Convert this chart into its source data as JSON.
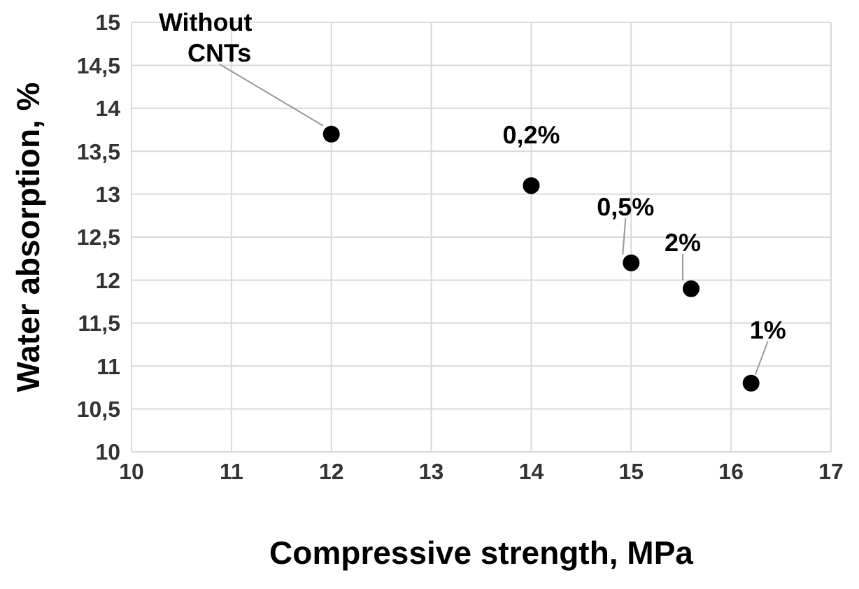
{
  "chart_data": {
    "type": "scatter",
    "xlabel": "Compressive strength, MPa",
    "ylabel": "Water absorption, %",
    "x": [
      12,
      14,
      15,
      15.6,
      16.2
    ],
    "series": [
      {
        "color": "#000000",
        "values": [
          13.7,
          13.1,
          12.2,
          11.9,
          10.8
        ]
      }
    ],
    "xlim": [
      10,
      17
    ],
    "xticks": [
      10,
      11,
      12,
      13,
      14,
      15,
      16,
      17
    ],
    "ylim": [
      10,
      15
    ],
    "yticks": [
      10,
      {
        "value": 10.5,
        "label": "10,5"
      },
      11,
      {
        "value": 11.5,
        "label": "11,5"
      },
      12,
      {
        "value": 12.5,
        "label": "12,5"
      },
      13,
      {
        "value": 13.5,
        "label": "13,5"
      },
      14,
      {
        "value": 14.5,
        "label": "14,5"
      },
      15
    ],
    "grid": true,
    "marker": "circle",
    "annotations": [
      {
        "text": "Without CNTs",
        "x": 12,
        "y": 13.7
      },
      {
        "text": "0,2%",
        "x": 14,
        "y": 13.1
      },
      {
        "text": "0,5%",
        "x": 15,
        "y": 12.2
      },
      {
        "text": "2%",
        "x": 15.6,
        "y": 11.9
      },
      {
        "text": "1%",
        "x": 16.2,
        "y": 10.8
      }
    ]
  }
}
